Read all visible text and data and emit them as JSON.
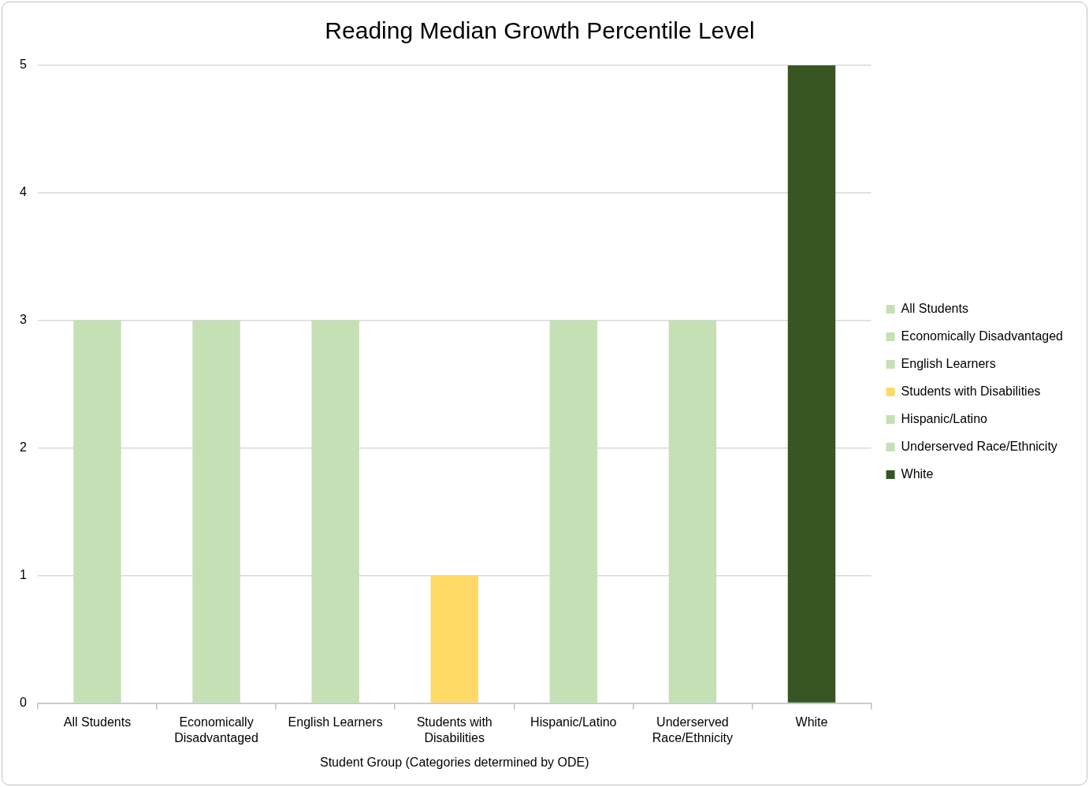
{
  "chart_data": {
    "type": "bar",
    "title": "Reading Median Growth Percentile Level",
    "xlabel": "Student Group (Categories determined by ODE)",
    "categories": [
      "All Students",
      "Economically Disadvantaged",
      "English Learners",
      "Students with Disabilities",
      "Hispanic/Latino",
      "Underserved Race/Ethnicity",
      "White"
    ],
    "series": [
      {
        "name": "All Students",
        "color": "#c5e0b4",
        "values": [
          3,
          null,
          null,
          null,
          null,
          null,
          null
        ]
      },
      {
        "name": "Economically Disadvantaged",
        "color": "#c5e0b4",
        "values": [
          null,
          3,
          null,
          null,
          null,
          null,
          null
        ]
      },
      {
        "name": "English Learners",
        "color": "#c5e0b4",
        "values": [
          null,
          null,
          3,
          null,
          null,
          null,
          null
        ]
      },
      {
        "name": "Students with Disabilities",
        "color": "#ffd966",
        "values": [
          null,
          null,
          null,
          1,
          null,
          null,
          null
        ]
      },
      {
        "name": "Hispanic/Latino",
        "color": "#c5e0b4",
        "values": [
          null,
          null,
          null,
          null,
          3,
          null,
          null
        ]
      },
      {
        "name": "Underserved Race/Ethnicity",
        "color": "#c5e0b4",
        "values": [
          null,
          null,
          null,
          null,
          null,
          3,
          null
        ]
      },
      {
        "name": "White",
        "color": "#375623",
        "values": [
          null,
          null,
          null,
          null,
          null,
          null,
          5
        ]
      }
    ],
    "ylim": [
      0,
      5
    ],
    "yticks": [
      0,
      1,
      2,
      3,
      4,
      5
    ],
    "grid": "y",
    "legend": "right"
  }
}
